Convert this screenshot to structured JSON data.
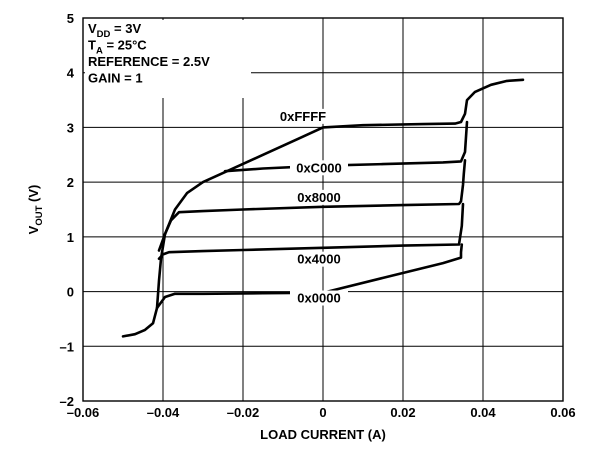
{
  "chart_data": {
    "type": "line",
    "xlabel": "LOAD CURRENT (A)",
    "ylabel": {
      "main": "V",
      "sub": "OUT",
      "unit": " (V)"
    },
    "xlim": [
      -0.06,
      0.06
    ],
    "ylim": [
      -2,
      5
    ],
    "x_ticks": [
      {
        "value": -0.06,
        "label": "–0.06"
      },
      {
        "value": -0.04,
        "label": "–0.04"
      },
      {
        "value": -0.02,
        "label": "–0.02"
      },
      {
        "value": 0,
        "label": "0"
      },
      {
        "value": 0.02,
        "label": "0.02"
      },
      {
        "value": 0.04,
        "label": "0.04"
      },
      {
        "value": 0.06,
        "label": "0.06"
      }
    ],
    "y_ticks": [
      {
        "value": 5,
        "label": "5"
      },
      {
        "value": 4,
        "label": "4"
      },
      {
        "value": 3,
        "label": "3"
      },
      {
        "value": 2,
        "label": "2"
      },
      {
        "value": 1,
        "label": "1"
      },
      {
        "value": 0,
        "label": "0"
      },
      {
        "value": -1,
        "label": "–1"
      },
      {
        "value": -2,
        "label": "–2"
      }
    ],
    "grid": true,
    "conditions": [
      {
        "main": "V",
        "sub": "DD",
        "rest": " = 3V"
      },
      {
        "main": "T",
        "sub": "A",
        "rest": " = 25°C"
      },
      {
        "main": "REFERENCE = 2.5V",
        "sub": "",
        "rest": ""
      },
      {
        "main": "GAIN = 1",
        "sub": "",
        "rest": ""
      }
    ],
    "series": [
      {
        "name": "0xFFFF",
        "label_at": [
          -0.005,
          3.12
        ],
        "points": [
          [
            -0.041,
            0.75
          ],
          [
            -0.0395,
            1.05
          ],
          [
            -0.037,
            1.5
          ],
          [
            -0.034,
            1.8
          ],
          [
            -0.03,
            2.0
          ],
          [
            -0.024,
            2.2
          ],
          [
            -0.015,
            2.5
          ],
          [
            -0.006,
            2.8
          ],
          [
            0.0,
            3.0
          ],
          [
            0.01,
            3.04
          ],
          [
            0.025,
            3.06
          ],
          [
            0.033,
            3.07
          ],
          [
            0.0345,
            3.1
          ],
          [
            0.0355,
            3.25
          ],
          [
            0.036,
            3.5
          ],
          [
            0.038,
            3.65
          ],
          [
            0.042,
            3.78
          ],
          [
            0.046,
            3.85
          ],
          [
            0.05,
            3.87
          ]
        ]
      },
      {
        "name": "0xC000",
        "label_at": [
          -0.001,
          2.18
        ],
        "points": [
          [
            -0.0245,
            2.2
          ],
          [
            -0.015,
            2.25
          ],
          [
            0.0,
            2.3
          ],
          [
            0.015,
            2.33
          ],
          [
            0.03,
            2.36
          ],
          [
            0.0345,
            2.38
          ],
          [
            0.0355,
            2.55
          ],
          [
            0.036,
            3.1
          ]
        ]
      },
      {
        "name": "0x8000",
        "label_at": [
          -0.001,
          1.64
        ],
        "points": [
          [
            -0.0395,
            1.05
          ],
          [
            -0.038,
            1.3
          ],
          [
            -0.036,
            1.45
          ],
          [
            -0.03,
            1.47
          ],
          [
            -0.02,
            1.5
          ],
          [
            0.0,
            1.55
          ],
          [
            0.02,
            1.58
          ],
          [
            0.034,
            1.6
          ],
          [
            0.0345,
            1.65
          ],
          [
            0.035,
            1.95
          ],
          [
            0.0352,
            2.15
          ],
          [
            0.0355,
            2.4
          ]
        ]
      },
      {
        "name": "0x4000",
        "label_at": [
          -0.001,
          0.51
        ],
        "points": [
          [
            -0.041,
            0.6
          ],
          [
            -0.04,
            0.68
          ],
          [
            -0.0385,
            0.72
          ],
          [
            -0.03,
            0.74
          ],
          [
            -0.02,
            0.76
          ],
          [
            0.0,
            0.8
          ],
          [
            0.02,
            0.84
          ],
          [
            0.034,
            0.86
          ],
          [
            0.0347,
            1.2
          ],
          [
            0.035,
            1.6
          ]
        ]
      },
      {
        "name": "0x0000",
        "label_at": [
          -0.001,
          -0.2
        ],
        "points": [
          [
            -0.05,
            -0.82
          ],
          [
            -0.047,
            -0.78
          ],
          [
            -0.0445,
            -0.7
          ],
          [
            -0.0425,
            -0.58
          ],
          [
            -0.0415,
            -0.3
          ],
          [
            -0.041,
            0.2
          ],
          [
            -0.0405,
            0.6
          ],
          [
            -0.0395,
            1.05
          ]
        ]
      },
      {
        "name": "",
        "label_at": null,
        "points": [
          [
            -0.0415,
            -0.3
          ],
          [
            -0.0395,
            -0.1
          ],
          [
            -0.037,
            -0.04
          ],
          [
            -0.03,
            -0.04
          ],
          [
            -0.015,
            -0.03
          ],
          [
            0.0,
            -0.02
          ],
          [
            0.015,
            0.25
          ],
          [
            0.03,
            0.52
          ],
          [
            0.0345,
            0.62
          ],
          [
            0.0345,
            0.72
          ],
          [
            0.0347,
            0.86
          ]
        ]
      }
    ]
  }
}
